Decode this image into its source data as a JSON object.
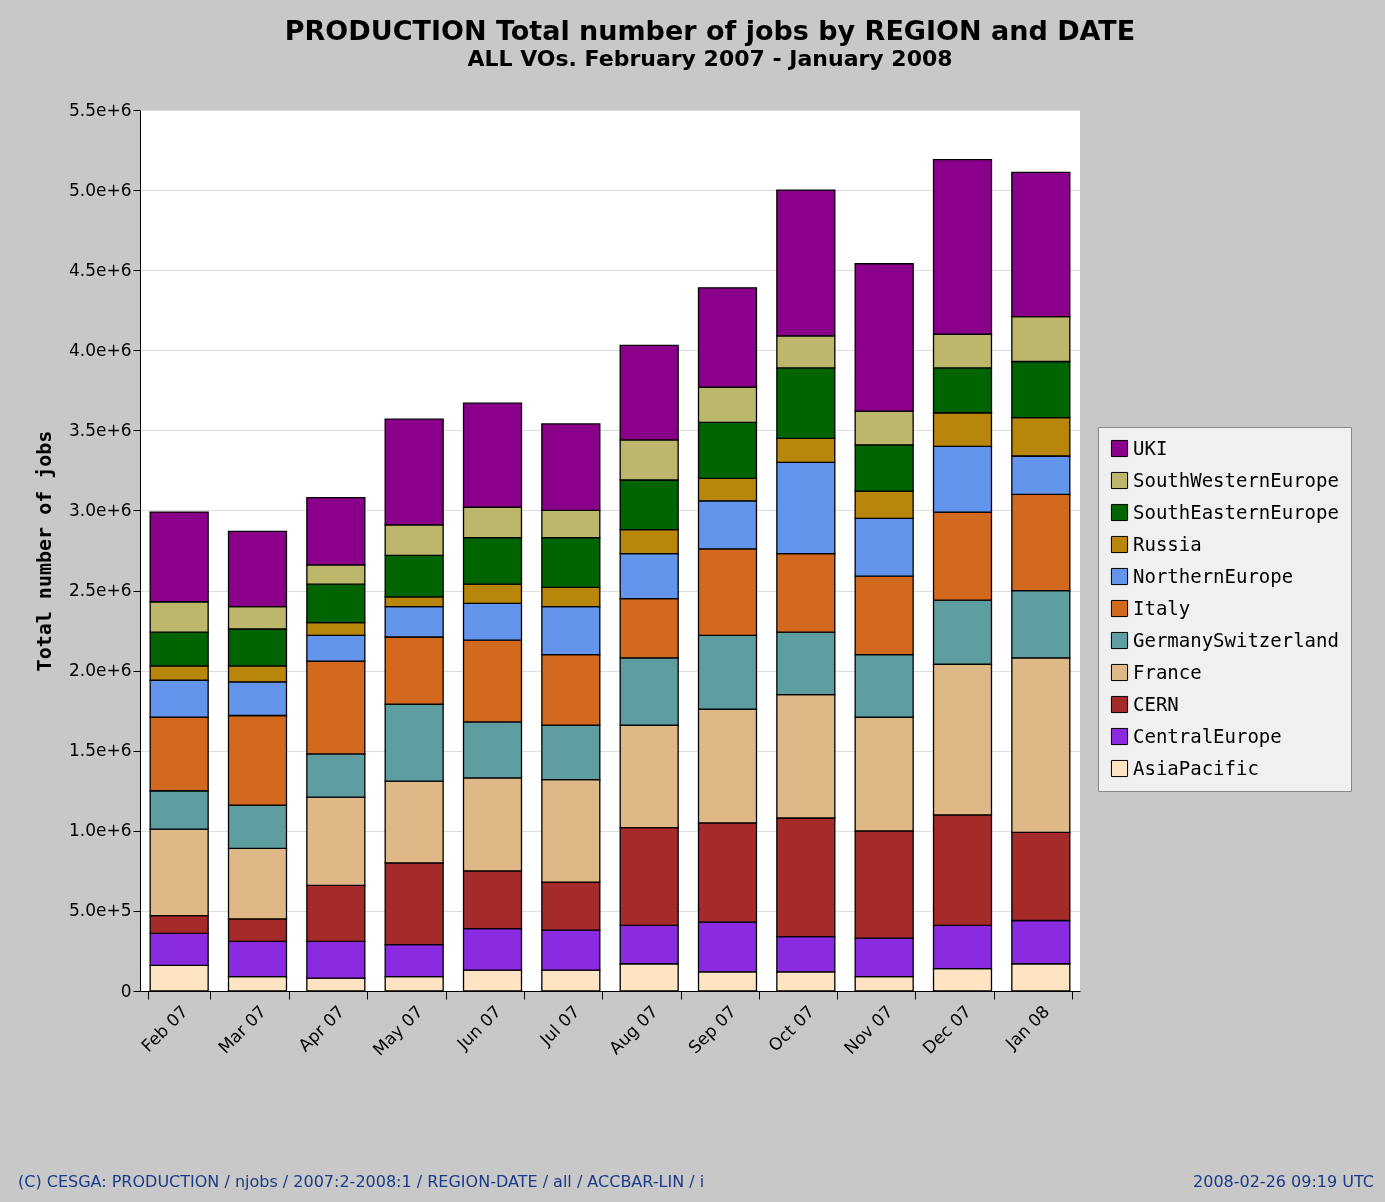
{
  "chart_data": {
    "type": "bar",
    "stacked": true,
    "title": "PRODUCTION Total number of jobs by REGION and DATE",
    "subtitle": "ALL VOs. February 2007 - January 2008",
    "ylabel": "Total number of jobs",
    "categories": [
      "Feb 07",
      "Mar 07",
      "Apr 07",
      "May 07",
      "Jun 07",
      "Jul 07",
      "Aug 07",
      "Sep 07",
      "Oct 07",
      "Nov 07",
      "Dec 07",
      "Jan 08"
    ],
    "series": [
      {
        "name": "AsiaPacific",
        "color": "#ffe4c4",
        "values": [
          160000,
          90000,
          80000,
          90000,
          130000,
          130000,
          170000,
          120000,
          120000,
          90000,
          140000,
          170000
        ]
      },
      {
        "name": "CentralEurope",
        "color": "#8a2be2",
        "values": [
          200000,
          220000,
          230000,
          200000,
          260000,
          250000,
          240000,
          310000,
          220000,
          240000,
          270000,
          270000
        ]
      },
      {
        "name": "CERN",
        "color": "#a52a2a",
        "values": [
          110000,
          140000,
          350000,
          510000,
          360000,
          300000,
          610000,
          620000,
          740000,
          670000,
          690000,
          550000
        ]
      },
      {
        "name": "France",
        "color": "#deb887",
        "values": [
          540000,
          440000,
          550000,
          510000,
          580000,
          640000,
          640000,
          710000,
          770000,
          710000,
          940000,
          1090000
        ]
      },
      {
        "name": "GermanySwitzerland",
        "color": "#5f9ea0",
        "values": [
          240000,
          270000,
          270000,
          480000,
          350000,
          340000,
          420000,
          460000,
          390000,
          390000,
          400000,
          420000
        ]
      },
      {
        "name": "Italy",
        "color": "#d2691e",
        "values": [
          460000,
          560000,
          580000,
          420000,
          510000,
          440000,
          370000,
          540000,
          490000,
          490000,
          550000,
          600000
        ]
      },
      {
        "name": "NorthernEurope",
        "color": "#6495ed",
        "values": [
          230000,
          210000,
          160000,
          190000,
          230000,
          300000,
          280000,
          300000,
          570000,
          360000,
          410000,
          240000
        ]
      },
      {
        "name": "Russia",
        "color": "#b8860b",
        "values": [
          90000,
          100000,
          80000,
          60000,
          120000,
          120000,
          150000,
          140000,
          150000,
          170000,
          210000,
          240000
        ]
      },
      {
        "name": "SouthEasternEurope",
        "color": "#006400",
        "values": [
          210000,
          230000,
          240000,
          260000,
          290000,
          310000,
          310000,
          350000,
          440000,
          290000,
          280000,
          350000
        ]
      },
      {
        "name": "SouthWesternEurope",
        "color": "#bdb76b",
        "values": [
          190000,
          140000,
          120000,
          190000,
          190000,
          170000,
          250000,
          220000,
          200000,
          210000,
          210000,
          280000
        ]
      },
      {
        "name": "UKI",
        "color": "#8b008b",
        "values": [
          560000,
          470000,
          420000,
          660000,
          650000,
          540000,
          590000,
          620000,
          910000,
          920000,
          1090000,
          900000
        ]
      }
    ],
    "ylim": [
      0,
      5500000
    ],
    "yticks": [
      {
        "value": 0,
        "label": "0"
      },
      {
        "value": 500000,
        "label": "5.0e+5"
      },
      {
        "value": 1000000,
        "label": "1.0e+6"
      },
      {
        "value": 1500000,
        "label": "1.5e+6"
      },
      {
        "value": 2000000,
        "label": "2.0e+6"
      },
      {
        "value": 2500000,
        "label": "2.5e+6"
      },
      {
        "value": 3000000,
        "label": "3.0e+6"
      },
      {
        "value": 3500000,
        "label": "3.5e+6"
      },
      {
        "value": 4000000,
        "label": "4.0e+6"
      },
      {
        "value": 4500000,
        "label": "4.5e+6"
      },
      {
        "value": 5000000,
        "label": "5.0e+6"
      },
      {
        "value": 5500000,
        "label": "5.5e+6"
      }
    ],
    "grid": "y",
    "legend": "right",
    "annotations": [
      "(C) CESGA: PRODUCTION / njobs / 2007:2-2008:1 / REGION-DATE / all / ACCBAR-LIN / i",
      "2008-02-26 09:19 UTC"
    ]
  }
}
